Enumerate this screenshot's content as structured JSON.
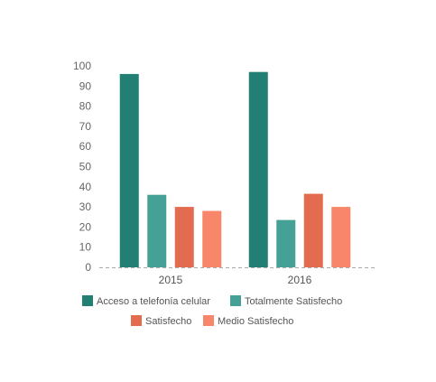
{
  "chart_data": {
    "type": "bar",
    "categories": [
      "2015",
      "2016"
    ],
    "series": [
      {
        "name": "Acceso a telefonía celular",
        "values": [
          96,
          97
        ],
        "color": "#217f74"
      },
      {
        "name": "Totalmente Satisfecho",
        "values": [
          36,
          23.5
        ],
        "color": "#45a095"
      },
      {
        "name": "Satisfecho",
        "values": [
          30,
          36.5
        ],
        "color": "#e36b4f"
      },
      {
        "name": "Medio Satisfecho",
        "values": [
          28,
          30
        ],
        "color": "#f8866a"
      }
    ],
    "ylim": [
      0,
      100
    ],
    "yticks": [
      0,
      10,
      20,
      30,
      40,
      50,
      60,
      70,
      80,
      90,
      100
    ],
    "grid": false,
    "baseline_style": "dashed",
    "legend_position": "bottom",
    "title": "",
    "xlabel": "",
    "ylabel": ""
  }
}
